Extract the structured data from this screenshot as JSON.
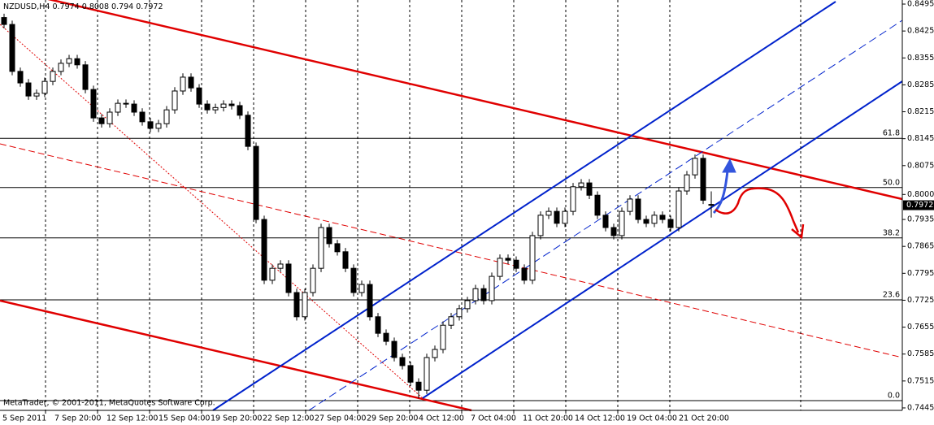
{
  "chart_data": {
    "type": "candlestick",
    "symbol": "NZDUSD,H4",
    "footer": "MetaTrader, © 2001-2011, MetaQuotes Software Corp.",
    "time_labels": [
      "5 Sep 2011",
      "7 Sep 20:00",
      "12 Sep 12:00",
      "15 Sep 04:00",
      "19 Sep 20:00",
      "22 Sep 12:00",
      "27 Sep 04:00",
      "29 Sep 20:00",
      "4 Oct 12:00",
      "7 Oct 04:00",
      "11 Oct 20:00",
      "14 Oct 12:00",
      "19 Oct 04:00",
      "21 Oct 20:00"
    ],
    "ylim": [
      0.74386,
      0.85056
    ],
    "yticks": [
      0.8495,
      0.8425,
      0.8355,
      0.8285,
      0.8215,
      0.8145,
      0.8075,
      {
        "value": 0.8,
        "label": "0.8000"
      },
      0.7935,
      0.7865,
      0.7795,
      0.7725,
      0.7655,
      0.7585,
      0.7515,
      0.7445
    ],
    "fib_levels": [
      {
        "level": 61.8,
        "price": 0.8146
      },
      {
        "level": {
          "value": 50,
          "label": "50.0"
        },
        "price": 0.8018
      },
      {
        "level": 38.2,
        "price": 0.7887
      },
      {
        "level": 23.6,
        "price": 0.7726
      },
      {
        "level": {
          "value": 0,
          "label": "0.0"
        },
        "price": 0.7464
      }
    ],
    "up_color": "#ffffff",
    "down_color": "#000000",
    "open": [
      0.846,
      0.8442,
      0.832,
      0.829,
      0.8256,
      0.8263,
      0.8294,
      0.832,
      0.8341,
      0.8353,
      0.8337,
      0.8273,
      0.8199,
      0.8184,
      0.8214,
      0.8237,
      0.8235,
      0.8214,
      0.8189,
      0.8172,
      0.8184,
      0.822,
      0.8269,
      0.8305,
      0.8277,
      0.8235,
      0.822,
      0.8226,
      0.8235,
      0.8231,
      0.8206,
      0.8125,
      0.7935,
      0.7777,
      0.7808,
      0.7819,
      0.7745,
      0.7682,
      0.7745,
      0.7808,
      0.7914,
      0.7872,
      0.7851,
      0.7808,
      0.7745,
      0.7766,
      0.7682,
      0.7639,
      0.7618,
      0.7576,
      0.7555,
      0.7512,
      0.7491,
      0.7576,
      0.7597,
      0.766,
      0.7682,
      0.7703,
      0.7724,
      0.7755,
      0.7724,
      0.7787,
      0.7834,
      0.7829,
      0.7808,
      0.7777,
      0.7893,
      0.7946,
      0.7956,
      0.7925,
      0.7956,
      0.802,
      0.803,
      0.7998,
      0.7946,
      0.7914,
      0.7893,
      0.7956,
      0.7988,
      0.7935,
      0.7925,
      0.7946,
      0.7935,
      0.7914,
      0.8009,
      0.8051,
      0.8094,
      0.7974
    ],
    "high": [
      0.847,
      0.8452,
      0.833,
      0.83,
      0.8273,
      0.8304,
      0.833,
      0.8351,
      0.8363,
      0.8363,
      0.8347,
      0.8283,
      0.8209,
      0.8224,
      0.8247,
      0.8247,
      0.8245,
      0.8224,
      0.8199,
      0.8194,
      0.823,
      0.8279,
      0.8315,
      0.8315,
      0.8287,
      0.8245,
      0.8236,
      0.8245,
      0.8245,
      0.8241,
      0.8216,
      0.8135,
      0.7945,
      0.7818,
      0.7829,
      0.7829,
      0.7755,
      0.7755,
      0.7818,
      0.7924,
      0.7924,
      0.7882,
      0.7861,
      0.7818,
      0.7776,
      0.7776,
      0.7692,
      0.7649,
      0.7628,
      0.7586,
      0.7565,
      0.7522,
      0.7586,
      0.7607,
      0.767,
      0.7692,
      0.7713,
      0.7734,
      0.7765,
      0.7765,
      0.7797,
      0.7844,
      0.7844,
      0.7839,
      0.7818,
      0.7903,
      0.7956,
      0.7966,
      0.7966,
      0.7966,
      0.803,
      0.804,
      0.804,
      0.8008,
      0.7956,
      0.7924,
      0.7966,
      0.7998,
      0.7998,
      0.7945,
      0.7956,
      0.7956,
      0.7945,
      0.8019,
      0.8061,
      0.8104,
      0.8104,
      0.8008
    ],
    "low": [
      0.8432,
      0.831,
      0.828,
      0.8246,
      0.8246,
      0.8253,
      0.8284,
      0.831,
      0.8331,
      0.8327,
      0.8263,
      0.8189,
      0.8174,
      0.8174,
      0.8204,
      0.8225,
      0.8204,
      0.8179,
      0.8162,
      0.8162,
      0.8174,
      0.821,
      0.8259,
      0.8267,
      0.8225,
      0.821,
      0.821,
      0.8216,
      0.8221,
      0.8196,
      0.8115,
      0.7925,
      0.7767,
      0.7767,
      0.7798,
      0.7735,
      0.7672,
      0.7672,
      0.7735,
      0.7798,
      0.7862,
      0.7841,
      0.7798,
      0.7735,
      0.7735,
      0.7672,
      0.7629,
      0.7608,
      0.7566,
      0.7545,
      0.7502,
      0.747,
      0.7481,
      0.7566,
      0.7587,
      0.765,
      0.7672,
      0.7693,
      0.7714,
      0.7714,
      0.7714,
      0.7777,
      0.7819,
      0.7798,
      0.7767,
      0.7767,
      0.7883,
      0.7936,
      0.7915,
      0.7915,
      0.7946,
      0.801,
      0.7988,
      0.7936,
      0.7904,
      0.7883,
      0.7883,
      0.7946,
      0.7925,
      0.7915,
      0.7915,
      0.7925,
      0.7904,
      0.7904,
      0.7999,
      0.8041,
      0.7975,
      0.794
    ],
    "close": [
      0.8442,
      0.832,
      0.829,
      0.8256,
      0.8263,
      0.8294,
      0.832,
      0.8341,
      0.8353,
      0.8337,
      0.8273,
      0.8199,
      0.8184,
      0.8214,
      0.8237,
      0.8235,
      0.8214,
      0.8189,
      0.8172,
      0.8184,
      0.822,
      0.8269,
      0.8305,
      0.8277,
      0.8235,
      0.822,
      0.8226,
      0.8235,
      0.8231,
      0.8206,
      0.8125,
      0.7935,
      0.7777,
      0.7808,
      0.7819,
      0.7745,
      0.7682,
      0.7745,
      0.7808,
      0.7914,
      0.7872,
      0.7851,
      0.7808,
      0.7745,
      0.7766,
      0.7682,
      0.7639,
      0.7618,
      0.7576,
      0.7555,
      0.7512,
      0.7491,
      0.7576,
      0.7597,
      0.766,
      0.7682,
      0.7703,
      0.7724,
      0.7755,
      0.7724,
      0.7787,
      0.7834,
      0.7829,
      0.7808,
      0.7777,
      0.7893,
      0.7946,
      0.7956,
      0.7925,
      0.7956,
      0.802,
      0.803,
      0.7998,
      0.7946,
      0.7914,
      0.7893,
      0.7956,
      0.7988,
      0.7935,
      0.7925,
      0.7946,
      0.7935,
      0.7914,
      0.8009,
      0.8051,
      0.8094,
      0.7985,
      0.7972
    ]
  }
}
